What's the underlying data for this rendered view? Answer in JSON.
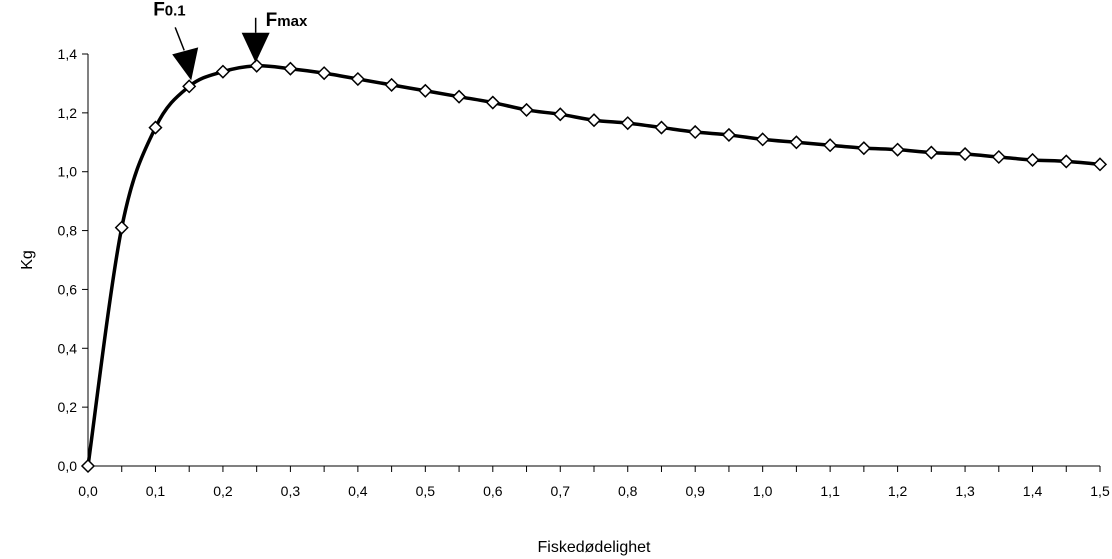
{
  "chart_data": {
    "type": "line",
    "title": "",
    "xlabel": "Fiskedødelighet",
    "ylabel": "Kg",
    "xlim": [
      0,
      1.5
    ],
    "ylim": [
      0,
      1.4
    ],
    "grid": false,
    "x_ticks": [
      "0,0",
      "0,1",
      "0,2",
      "0,3",
      "0,4",
      "0,5",
      "0,6",
      "0,7",
      "0,8",
      "0,9",
      "1,0",
      "1,1",
      "1,2",
      "1,3",
      "1,4",
      "1,5"
    ],
    "y_ticks": [
      "0,0",
      "0,2",
      "0,4",
      "0,6",
      "0,8",
      "1,0",
      "1,2",
      "1,4"
    ],
    "series": [
      {
        "marker": "diamond",
        "x": [
          0,
          0.05,
          0.1,
          0.15,
          0.2,
          0.25,
          0.3,
          0.35,
          0.4,
          0.45,
          0.5,
          0.55,
          0.6,
          0.65,
          0.7,
          0.75,
          0.8,
          0.85,
          0.9,
          0.95,
          1.0,
          1.05,
          1.1,
          1.15,
          1.2,
          1.25,
          1.3,
          1.35,
          1.4,
          1.45,
          1.5
        ],
        "y": [
          0,
          0.81,
          1.15,
          1.29,
          1.34,
          1.36,
          1.35,
          1.335,
          1.315,
          1.295,
          1.275,
          1.255,
          1.235,
          1.21,
          1.195,
          1.175,
          1.165,
          1.15,
          1.135,
          1.125,
          1.11,
          1.1,
          1.09,
          1.08,
          1.075,
          1.065,
          1.06,
          1.05,
          1.04,
          1.035,
          1.025
        ]
      }
    ],
    "annotations": [
      {
        "label": "F",
        "sub": "0.1",
        "x": 0.15,
        "y": 1.29
      },
      {
        "label": "F",
        "sub": "max",
        "x": 0.25,
        "y": 1.36
      }
    ],
    "colors": {
      "line": "#000000",
      "marker_fill": "#ffffff",
      "marker_stroke": "#000000"
    }
  }
}
